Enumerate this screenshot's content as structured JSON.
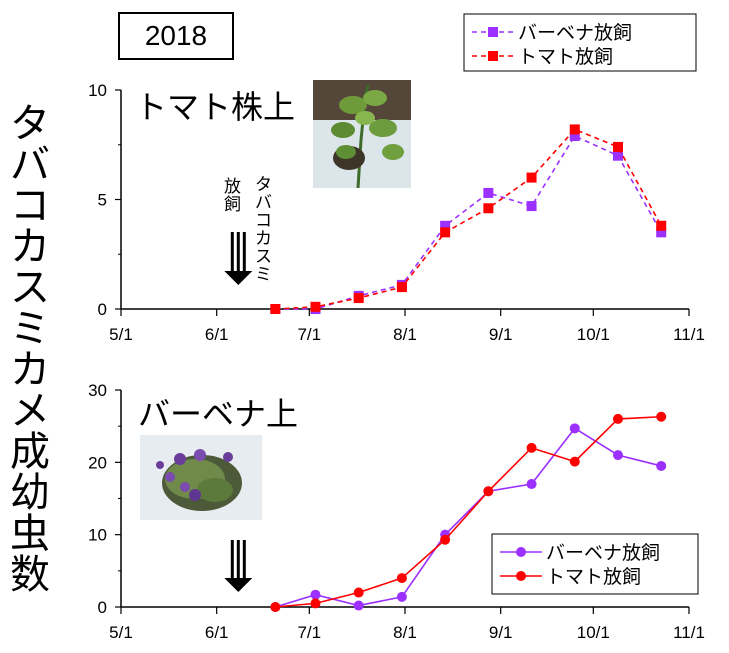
{
  "year_label": "2018",
  "y_axis_label": "タバコカスミカメ成幼虫数",
  "release_labels": {
    "release": "放飼",
    "insect": "タバコカスミ"
  },
  "colors": {
    "verbena": "#9b30ff",
    "tomato": "#ff0000",
    "axis": "#000000"
  },
  "photos": {
    "tomato_photo": "tomato-plant-photo",
    "verbena_photo": "verbena-plant-photo"
  },
  "chart_data": [
    {
      "type": "line",
      "title": "トマト株上",
      "x_tick_labels": [
        "5/1",
        "6/1",
        "7/1",
        "8/1",
        "9/1",
        "10/1",
        "11/1"
      ],
      "ylim": [
        0,
        10
      ],
      "y_ticks": [
        0,
        5,
        10
      ],
      "grid": false,
      "legend_placement": "top-right",
      "release_arrow_x": "6/8",
      "series": [
        {
          "name": "バーベナ放飼",
          "marker": "square",
          "line": "dashed",
          "x": [
            "6/20",
            "7/3",
            "7/17",
            "7/31",
            "8/14",
            "8/28",
            "9/11",
            "9/25",
            "10/9",
            "10/23"
          ],
          "y": [
            0,
            0,
            0.6,
            1.1,
            3.8,
            5.3,
            4.7,
            7.9,
            7.0,
            3.5
          ]
        },
        {
          "name": "トマト放飼",
          "marker": "square",
          "line": "dashed",
          "x": [
            "6/20",
            "7/3",
            "7/17",
            "7/31",
            "8/14",
            "8/28",
            "9/11",
            "9/25",
            "10/9",
            "10/23"
          ],
          "y": [
            0,
            0.1,
            0.5,
            1.0,
            3.5,
            4.6,
            6.0,
            8.2,
            7.4,
            3.8
          ]
        }
      ]
    },
    {
      "type": "line",
      "title": "バーベナ上",
      "x_tick_labels": [
        "5/1",
        "6/1",
        "7/1",
        "8/1",
        "9/1",
        "10/1",
        "11/1"
      ],
      "ylim": [
        0,
        30
      ],
      "y_ticks": [
        0,
        10,
        20,
        30
      ],
      "grid": false,
      "legend_placement": "bottom-right",
      "release_arrow_x": "6/8",
      "series": [
        {
          "name": "バーベナ放飼",
          "marker": "circle",
          "line": "solid",
          "x": [
            "6/20",
            "7/3",
            "7/17",
            "7/31",
            "8/14",
            "8/28",
            "9/11",
            "9/25",
            "10/9",
            "10/23"
          ],
          "y": [
            0,
            1.7,
            0.2,
            1.4,
            10,
            16,
            17,
            24.7,
            21,
            19.5
          ]
        },
        {
          "name": "トマト放飼",
          "marker": "circle",
          "line": "solid",
          "x": [
            "6/20",
            "7/3",
            "7/17",
            "7/31",
            "8/14",
            "8/28",
            "9/11",
            "9/25",
            "10/9",
            "10/23"
          ],
          "y": [
            0,
            0.5,
            2.0,
            4.0,
            9.3,
            16,
            22,
            20.1,
            26,
            26.3
          ]
        }
      ]
    }
  ]
}
